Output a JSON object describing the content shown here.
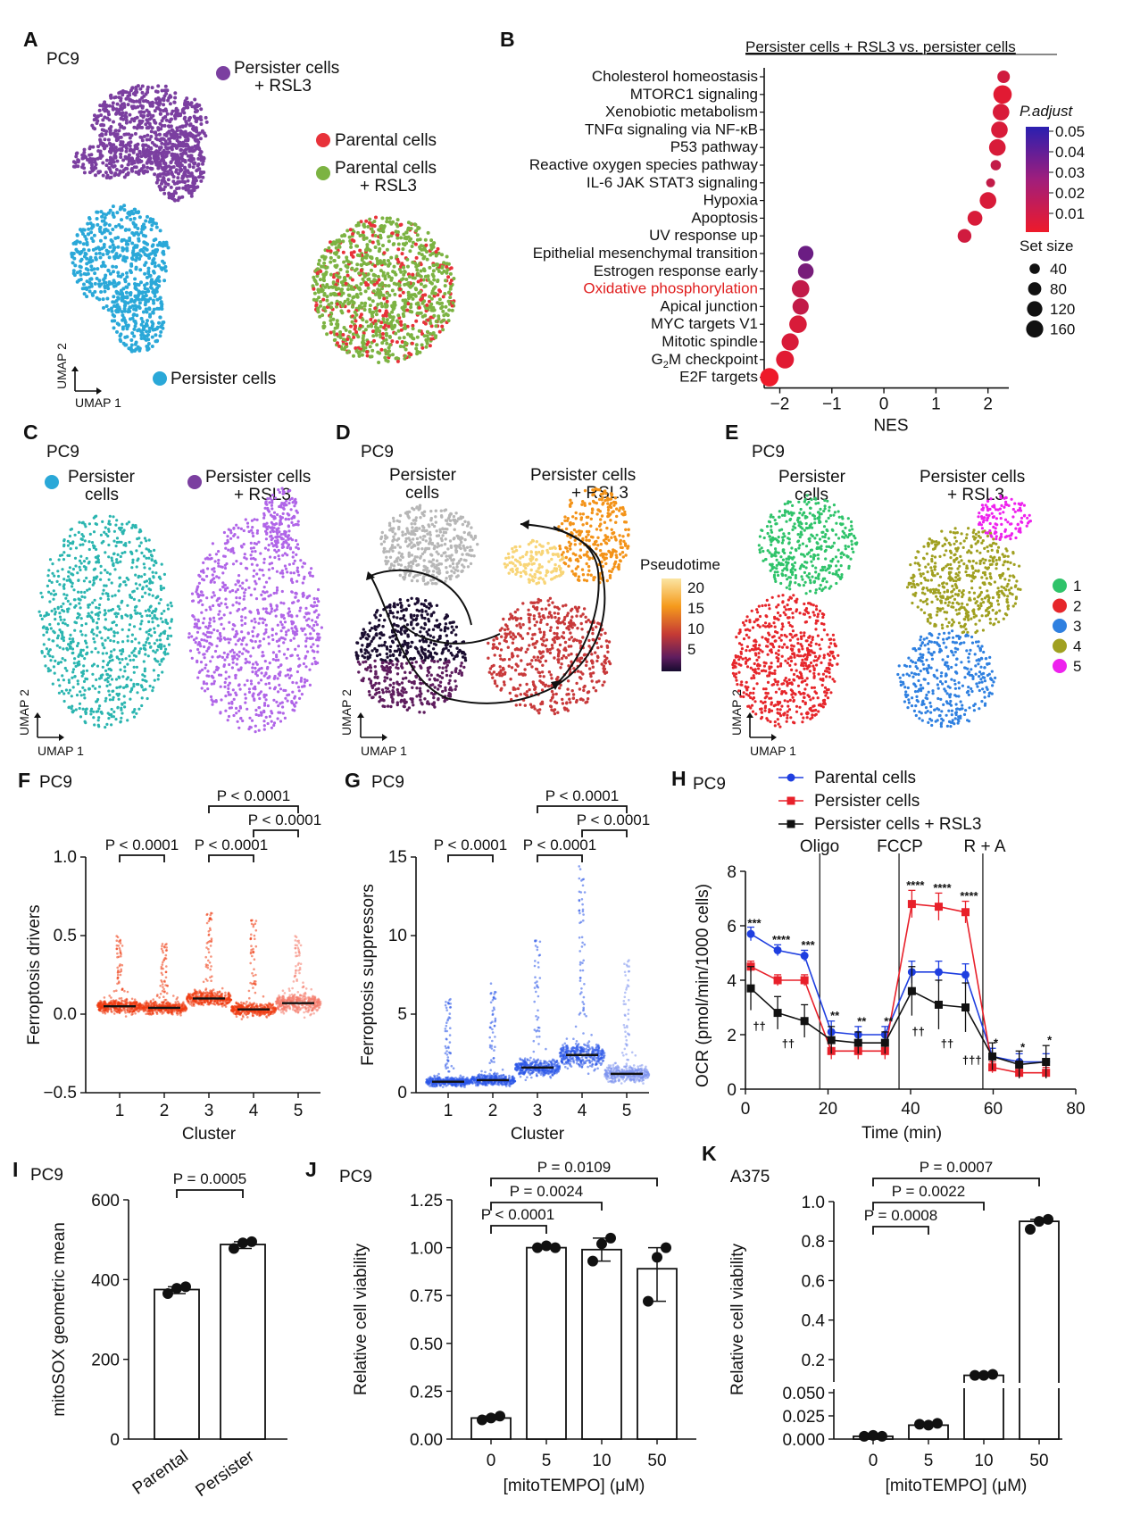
{
  "panels": {
    "A": {
      "letter": "A",
      "cell_line": "PC9",
      "legend": [
        "Persister cells\n+ RSL3",
        "Parental cells",
        "Parental cells\n+ RSL3",
        "Persister cells"
      ],
      "colors": [
        "#7b3fa0",
        "#e8323a",
        "#7cb342",
        "#2aa8d8"
      ],
      "umap1": "UMAP 1",
      "umap2": "UMAP 2"
    },
    "B": {
      "letter": "B",
      "title": "Persister cells + RSL3 vs. persister cells",
      "padj_title": "P.adjust",
      "padj_ticks": [
        "0.05",
        "0.04",
        "0.03",
        "0.02",
        "0.01"
      ],
      "setsize_title": "Set size",
      "setsize_ticks": [
        "40",
        "80",
        "120",
        "160"
      ]
    },
    "C": {
      "letter": "C",
      "cell_line": "PC9",
      "legend": [
        "Persister\ncells",
        "Persister cells\n+ RSL3"
      ],
      "umap1": "UMAP 1",
      "umap2": "UMAP 2"
    },
    "D": {
      "letter": "D",
      "cell_line": "PC9",
      "labels": [
        "Persister\ncells",
        "Persister cells\n+ RSL3"
      ],
      "pt_title": "Pseudotime",
      "pt_ticks": [
        "20",
        "15",
        "10",
        "5"
      ],
      "umap1": "UMAP 1",
      "umap2": "UMAP 2"
    },
    "E": {
      "letter": "E",
      "cell_line": "PC9",
      "labels": [
        "Persister\ncells",
        "Persister cells\n+ RSL3"
      ],
      "clusters": [
        "1",
        "2",
        "3",
        "4",
        "5"
      ],
      "cluster_colors": [
        "#2fc36a",
        "#e6262b",
        "#2f80e0",
        "#a0a020",
        "#ee22ee"
      ],
      "umap1": "UMAP 1",
      "umap2": "UMAP 2"
    },
    "F": {
      "letter": "F",
      "cell_line": "PC9",
      "xlabel": "Cluster",
      "ylabel": "Ferroptosis drivers",
      "pvals": [
        "P < 0.0001",
        "P < 0.0001",
        "P < 0.0001",
        "P < 0.0001"
      ]
    },
    "G": {
      "letter": "G",
      "cell_line": "PC9",
      "xlabel": "Cluster",
      "ylabel": "Ferroptosis suppressors",
      "pvals": [
        "P < 0.0001",
        "P < 0.0001",
        "P < 0.0001",
        "P < 0.0001"
      ]
    },
    "H": {
      "letter": "H",
      "cell_line": "PC9",
      "legend": [
        "Parental cells",
        "Persister cells",
        "Persister cells + RSL3"
      ],
      "phases": [
        "Oligo",
        "FCCP",
        "R + A"
      ],
      "xlabel": "Time (min)",
      "ylabel": "OCR (pmol/min/1000 cells)"
    },
    "I": {
      "letter": "I",
      "cell_line": "PC9",
      "ylabel": "mitoSOX geometric mean",
      "pval": "P = 0.0005"
    },
    "J": {
      "letter": "J",
      "cell_line": "PC9",
      "ylabel": "Relative cell viability",
      "xlabel": "[mitoTEMPO] (μM)",
      "pvals": [
        "P = 0.0109",
        "P = 0.0024",
        "P < 0.0001"
      ]
    },
    "K": {
      "letter": "K",
      "cell_line": "A375",
      "ylabel": "Relative cell viability",
      "xlabel": "[mitoTEMPO] (μM)",
      "pvals": [
        "P = 0.0007",
        "P = 0.0022",
        "P = 0.0008"
      ]
    }
  },
  "chart_data": [
    {
      "panel": "B",
      "type": "scatter",
      "title": "Persister cells + RSL3 vs. persister cells",
      "xlabel": "NES",
      "ylabel": "",
      "xlim": [
        -2.3,
        2.4
      ],
      "xticks": [
        "−2",
        "−1",
        "0",
        "1",
        "2"
      ],
      "pathways": [
        {
          "name": "Cholesterol homeostasis",
          "nes": 2.3,
          "padj": 0.012,
          "size": 70
        },
        {
          "name": "MTORC1 signaling",
          "nes": 2.28,
          "padj": 0.008,
          "size": 190
        },
        {
          "name": "Xenobiotic metabolism",
          "nes": 2.25,
          "padj": 0.01,
          "size": 150
        },
        {
          "name": "TNFα signaling via NF-κB",
          "nes": 2.22,
          "padj": 0.01,
          "size": 150
        },
        {
          "name": "P53 pathway",
          "nes": 2.18,
          "padj": 0.01,
          "size": 150
        },
        {
          "name": "Reactive oxygen species pathway",
          "nes": 2.15,
          "padj": 0.015,
          "size": 40
        },
        {
          "name": "IL-6 JAK STAT3 signaling",
          "nes": 2.05,
          "padj": 0.015,
          "size": 25
        },
        {
          "name": "Hypoxia",
          "nes": 2.0,
          "padj": 0.01,
          "size": 150
        },
        {
          "name": "Apoptosis",
          "nes": 1.75,
          "padj": 0.01,
          "size": 110
        },
        {
          "name": "UV response up",
          "nes": 1.55,
          "padj": 0.012,
          "size": 90
        },
        {
          "name": "Epithelial mesenchymal transition",
          "nes": -1.5,
          "padj": 0.035,
          "size": 120
        },
        {
          "name": "Estrogen response early",
          "nes": -1.5,
          "padj": 0.032,
          "size": 130
        },
        {
          "name": "Oxidative phosphorylation",
          "nes": -1.6,
          "padj": 0.015,
          "size": 170
        },
        {
          "name": "Apical junction",
          "nes": -1.6,
          "padj": 0.015,
          "size": 140
        },
        {
          "name": "MYC targets V1",
          "nes": -1.65,
          "padj": 0.01,
          "size": 170
        },
        {
          "name": "Mitotic spindle",
          "nes": -1.8,
          "padj": 0.01,
          "size": 160
        },
        {
          "name": "G2M checkpoint",
          "nes": -1.9,
          "padj": 0.008,
          "size": 180
        },
        {
          "name": "E2F targets",
          "nes": -2.2,
          "padj": 0.005,
          "size": 190
        }
      ],
      "highlight": "Oxidative phosphorylation"
    },
    {
      "panel": "F",
      "type": "violin",
      "title": "",
      "xlabel": "Cluster",
      "ylabel": "Ferroptosis drivers",
      "categories": [
        "1",
        "2",
        "3",
        "4",
        "5"
      ],
      "medians": [
        0.05,
        0.04,
        0.1,
        0.03,
        0.07
      ],
      "ylim": [
        -0.5,
        1.0
      ],
      "yticks": [
        "1.0",
        "0.5",
        "0.0",
        "−0.5"
      ]
    },
    {
      "panel": "G",
      "type": "violin",
      "title": "",
      "xlabel": "Cluster",
      "ylabel": "Ferroptosis suppressors",
      "categories": [
        "1",
        "2",
        "3",
        "4",
        "5"
      ],
      "medians": [
        0.7,
        0.8,
        1.6,
        2.4,
        1.2
      ],
      "ylim": [
        0,
        15
      ],
      "yticks": [
        "15",
        "10",
        "5",
        "0"
      ]
    },
    {
      "panel": "H",
      "type": "line",
      "xlabel": "Time (min)",
      "ylabel": "OCR (pmol/min/1000 cells)",
      "x": [
        1.3,
        7.8,
        14.3,
        20.8,
        27.3,
        33.8,
        40.3,
        46.8,
        53.3,
        59.8,
        66.3,
        72.8
      ],
      "xlim": [
        0,
        80
      ],
      "ylim": [
        0,
        8
      ],
      "xticks": [
        "0",
        "20",
        "40",
        "60",
        "80"
      ],
      "yticks": [
        "8",
        "6",
        "4",
        "2",
        "0"
      ],
      "series": [
        {
          "name": "Parental cells",
          "color": "#1f3fe0",
          "values": [
            5.7,
            5.1,
            4.9,
            2.1,
            2.0,
            2.0,
            4.3,
            4.3,
            4.2,
            1.2,
            1.0,
            1.0
          ],
          "err": [
            0.25,
            0.2,
            0.2,
            0.4,
            0.3,
            0.3,
            0.4,
            0.4,
            0.4,
            0.3,
            0.3,
            0.3
          ]
        },
        {
          "name": "Persister cells",
          "color": "#e8202a",
          "values": [
            4.5,
            4.0,
            4.0,
            1.4,
            1.4,
            1.4,
            6.8,
            6.7,
            6.5,
            0.8,
            0.6,
            0.6
          ],
          "err": [
            0.2,
            0.2,
            0.2,
            0.3,
            0.3,
            0.3,
            0.5,
            0.5,
            0.4,
            0.2,
            0.2,
            0.2
          ]
        },
        {
          "name": "Persister cells + RSL3",
          "color": "#111111",
          "values": [
            3.7,
            2.8,
            2.5,
            1.8,
            1.7,
            1.7,
            3.6,
            3.1,
            3.0,
            1.2,
            0.9,
            1.0
          ],
          "err": [
            0.8,
            0.6,
            0.6,
            0.5,
            0.4,
            0.4,
            0.9,
            0.9,
            0.9,
            0.5,
            0.5,
            0.6
          ]
        }
      ],
      "annotations": [
        "***",
        "****",
        "***",
        "**",
        "**",
        "**",
        "****",
        "****",
        "****",
        "*",
        "*",
        "*",
        "††",
        "††",
        "††",
        "††",
        "†††"
      ],
      "phases": [
        "Oligo",
        "FCCP",
        "R + A"
      ]
    },
    {
      "panel": "I",
      "type": "bar",
      "categories": [
        "Parental",
        "Persister"
      ],
      "values": [
        375,
        488
      ],
      "points": [
        [
          365,
          378,
          382
        ],
        [
          478,
          492,
          495
        ]
      ],
      "ylim": [
        0,
        600
      ],
      "yticks": [
        "600",
        "400",
        "200",
        "0"
      ],
      "ylabel": "mitoSOX geometric mean"
    },
    {
      "panel": "J",
      "type": "bar",
      "categories": [
        "0",
        "5",
        "10",
        "50"
      ],
      "values": [
        0.11,
        1.0,
        0.99,
        0.89
      ],
      "points": [
        [
          0.1,
          0.11,
          0.12
        ],
        [
          1.0,
          1.01,
          1.0
        ],
        [
          0.93,
          1.02,
          1.05
        ],
        [
          0.72,
          0.95,
          1.0
        ]
      ],
      "ylim": [
        0,
        1.25
      ],
      "yticks": [
        "1.25",
        "1.00",
        "0.75",
        "0.50",
        "0.25",
        "0.00"
      ],
      "xlabel": "[mitoTEMPO] (μM)",
      "ylabel": "Relative cell viability"
    },
    {
      "panel": "K",
      "type": "bar",
      "categories": [
        "0",
        "5",
        "10",
        "50"
      ],
      "values": [
        0.003,
        0.015,
        0.12,
        0.9
      ],
      "points": [
        [
          0.003,
          0.004,
          0.003
        ],
        [
          0.016,
          0.015,
          0.017
        ],
        [
          0.12,
          0.12,
          0.125
        ],
        [
          0.86,
          0.9,
          0.91
        ]
      ],
      "ylim": [
        0,
        1.0
      ],
      "yticks_top": [
        "1.0",
        "0.8",
        "0.6",
        "0.4",
        "0.2"
      ],
      "yticks_bottom": [
        "0.050",
        "0.025",
        "0.000"
      ],
      "xlabel": "[mitoTEMPO] (μM)",
      "ylabel": "Relative cell viability"
    }
  ]
}
